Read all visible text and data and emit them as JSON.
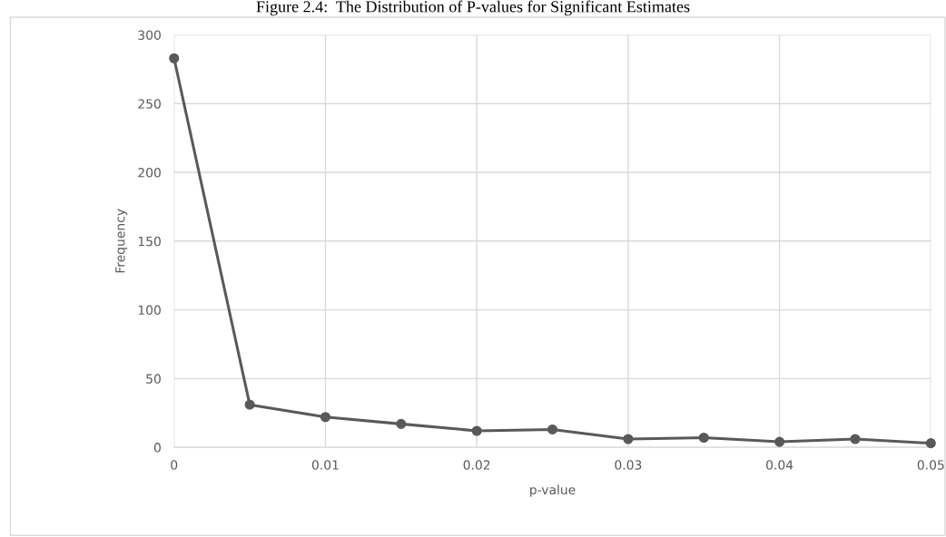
{
  "chart_data": {
    "type": "line",
    "title": "Figure 2.4:  The Distribution of P-values for Significant Estimates",
    "xlabel": "p-value",
    "ylabel": "Frequency",
    "x": [
      0,
      0.005,
      0.01,
      0.015,
      0.02,
      0.025,
      0.03,
      0.035,
      0.04,
      0.045,
      0.05
    ],
    "series": [
      {
        "color": "#595959",
        "values": [
          283,
          31,
          22,
          17,
          12,
          13,
          6,
          7,
          4,
          6,
          3
        ]
      }
    ],
    "xlim": [
      0,
      0.05
    ],
    "xticks": [
      0,
      0.01,
      0.02,
      0.03,
      0.04,
      0.05
    ],
    "ylim": [
      0,
      300
    ],
    "yticks": [
      0,
      50,
      100,
      150,
      200,
      250,
      300
    ],
    "grid": true,
    "marker": "circle",
    "line_style": "solid",
    "legend": false
  }
}
